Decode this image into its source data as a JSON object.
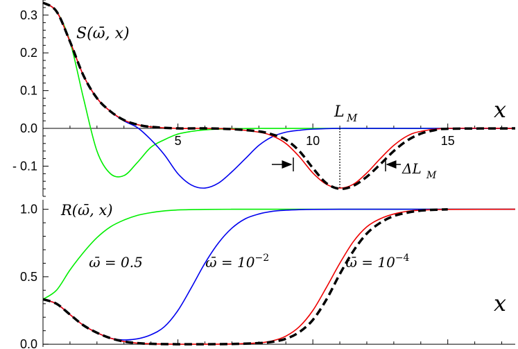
{
  "chart_data": [
    {
      "type": "line",
      "panel": "top",
      "title": "",
      "xlabel": "x",
      "ylabel": "",
      "xlim": [
        0,
        17.5
      ],
      "ylim": [
        -0.18,
        0.34
      ],
      "x_ticks": [
        5,
        10,
        15
      ],
      "y_ticks": [
        0.3,
        0.2,
        0.1,
        0.0,
        -0.1
      ],
      "y_tick_labels": [
        "0.3",
        "0.2",
        "0.1",
        "0.0",
        "- 0.1"
      ],
      "annotations": {
        "curve_label": "S(ω̄, x)",
        "lm_label": "L",
        "lm_sub": "M",
        "dlm_label": "ΔL",
        "dlm_sub": "M",
        "lm_x": 11.0
      },
      "series": [
        {
          "color": "#00ee00",
          "x": [
            0,
            0.5,
            1,
            1.5,
            2,
            2.5,
            3,
            3.5,
            4,
            4.5,
            5,
            5.5,
            6,
            6.5,
            7,
            8,
            9,
            10,
            12,
            14,
            17.5
          ],
          "y": [
            0.333,
            0.31,
            0.23,
            0.08,
            -0.06,
            -0.12,
            -0.125,
            -0.09,
            -0.05,
            -0.03,
            -0.015,
            -0.008,
            -0.004,
            -0.002,
            -0.001,
            0,
            0,
            0,
            0,
            0,
            0
          ]
        },
        {
          "color": "#0000ee",
          "x": [
            0,
            0.5,
            1,
            1.5,
            2,
            2.5,
            3,
            3.5,
            4,
            4.5,
            5,
            5.5,
            6,
            6.5,
            7,
            7.5,
            8,
            8.5,
            9,
            9.5,
            10,
            11,
            12,
            17.5
          ],
          "y": [
            0.333,
            0.31,
            0.23,
            0.14,
            0.08,
            0.045,
            0.02,
            0.002,
            -0.03,
            -0.07,
            -0.12,
            -0.15,
            -0.158,
            -0.145,
            -0.115,
            -0.08,
            -0.045,
            -0.022,
            -0.01,
            -0.005,
            -0.002,
            0,
            0,
            0
          ]
        },
        {
          "color": "#ee0000",
          "x": [
            0,
            0.5,
            1,
            1.5,
            2,
            2.5,
            3,
            3.5,
            4,
            5,
            6,
            7,
            8,
            8.5,
            9,
            9.5,
            10,
            10.5,
            11,
            11.5,
            12,
            12.5,
            13,
            13.5,
            14,
            15,
            17.5
          ],
          "y": [
            0.333,
            0.31,
            0.23,
            0.14,
            0.08,
            0.045,
            0.022,
            0.01,
            0.004,
            0,
            0,
            -0.002,
            -0.01,
            -0.02,
            -0.04,
            -0.075,
            -0.118,
            -0.148,
            -0.158,
            -0.148,
            -0.118,
            -0.08,
            -0.045,
            -0.02,
            -0.008,
            0,
            0
          ]
        },
        {
          "color": "#000000",
          "dashed": true,
          "x": [
            0,
            0.5,
            1,
            1.5,
            2,
            2.5,
            3,
            3.5,
            4,
            5,
            6,
            7,
            8,
            8.5,
            9,
            9.5,
            10,
            10.5,
            11,
            11.5,
            12,
            12.5,
            13,
            13.5,
            14,
            14.5,
            15,
            17.5
          ],
          "y": [
            0.333,
            0.31,
            0.23,
            0.14,
            0.08,
            0.045,
            0.022,
            0.01,
            0.004,
            0,
            0,
            -0.002,
            -0.008,
            -0.016,
            -0.03,
            -0.06,
            -0.105,
            -0.145,
            -0.16,
            -0.152,
            -0.128,
            -0.095,
            -0.06,
            -0.032,
            -0.014,
            -0.005,
            -0.001,
            0
          ]
        }
      ]
    },
    {
      "type": "line",
      "panel": "bottom",
      "title": "",
      "xlabel": "x",
      "ylabel": "",
      "xlim": [
        0,
        17.5
      ],
      "ylim": [
        -0.02,
        1.07
      ],
      "x_ticks": [
        5,
        10,
        15
      ],
      "y_ticks": [
        0.0,
        0.5,
        1.0
      ],
      "y_tick_labels": [
        "0.0",
        "0.5",
        "1.0"
      ],
      "annotations": {
        "curve_label": "R(ω̄, x)",
        "labels": [
          {
            "text": "ω̄ = 0.5",
            "x": 2.7,
            "y": 0.57
          },
          {
            "text": "ω̄ = 10",
            "sup": "−2",
            "x": 7.2,
            "y": 0.57
          },
          {
            "text": "ω̄ = 10",
            "sup": "−4",
            "x": 12.4,
            "y": 0.57
          }
        ]
      },
      "series": [
        {
          "color": "#00ee00",
          "x": [
            0,
            0.5,
            1,
            1.5,
            2,
            2.5,
            3,
            3.5,
            4,
            4.5,
            5,
            6,
            7,
            8,
            17.5
          ],
          "y": [
            0.333,
            0.4,
            0.55,
            0.68,
            0.79,
            0.87,
            0.92,
            0.955,
            0.975,
            0.988,
            0.995,
            0.999,
            1.0,
            1.0,
            1.0
          ]
        },
        {
          "color": "#0000ee",
          "x": [
            0,
            0.5,
            1,
            1.5,
            2,
            2.5,
            3,
            3.5,
            4,
            4.5,
            5,
            5.5,
            6,
            6.5,
            7,
            7.5,
            8,
            8.5,
            9,
            9.5,
            10,
            11,
            12,
            17.5
          ],
          "y": [
            0.333,
            0.3,
            0.22,
            0.14,
            0.085,
            0.045,
            0.032,
            0.04,
            0.07,
            0.13,
            0.25,
            0.42,
            0.6,
            0.75,
            0.86,
            0.93,
            0.965,
            0.985,
            0.993,
            0.997,
            0.999,
            1.0,
            1.0,
            1.0
          ]
        },
        {
          "color": "#ee0000",
          "x": [
            0,
            0.5,
            1,
            1.5,
            2,
            2.5,
            3,
            3.5,
            4,
            5,
            6,
            7,
            8,
            8.5,
            9,
            9.5,
            10,
            10.5,
            11,
            11.5,
            12,
            12.5,
            13,
            13.5,
            14,
            15,
            17.5
          ],
          "y": [
            0.333,
            0.3,
            0.22,
            0.14,
            0.085,
            0.045,
            0.02,
            0.008,
            0.003,
            0,
            0,
            0.002,
            0.01,
            0.025,
            0.06,
            0.13,
            0.25,
            0.42,
            0.6,
            0.76,
            0.87,
            0.93,
            0.965,
            0.985,
            0.993,
            0.999,
            1.0
          ]
        },
        {
          "color": "#000000",
          "dashed": true,
          "x": [
            0,
            0.5,
            1,
            1.5,
            2,
            2.5,
            3,
            3.5,
            4,
            5,
            6,
            7,
            8,
            8.5,
            9,
            9.5,
            10,
            10.5,
            11,
            11.5,
            12,
            12.5,
            13,
            13.5,
            14,
            14.5,
            15
          ],
          "y": [
            0.333,
            0.3,
            0.22,
            0.14,
            0.085,
            0.045,
            0.02,
            0.008,
            0.003,
            0,
            0,
            0.002,
            0.008,
            0.018,
            0.04,
            0.09,
            0.18,
            0.33,
            0.52,
            0.69,
            0.82,
            0.9,
            0.95,
            0.975,
            0.99,
            0.996,
            0.999
          ]
        }
      ]
    }
  ]
}
